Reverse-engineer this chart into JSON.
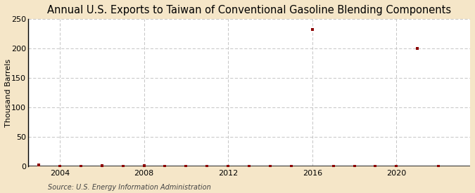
{
  "title": "Annual U.S. Exports to Taiwan of Conventional Gasoline Blending Components",
  "ylabel": "Thousand Barrels",
  "source": "Source: U.S. Energy Information Administration",
  "outer_bg": "#f5e6c8",
  "plot_bg": "#ffffff",
  "years": [
    2003,
    2004,
    2005,
    2006,
    2007,
    2008,
    2009,
    2010,
    2011,
    2012,
    2013,
    2014,
    2015,
    2016,
    2017,
    2018,
    2019,
    2020,
    2021,
    2022
  ],
  "values": [
    3,
    1,
    1,
    2,
    1,
    2,
    1,
    1,
    1,
    1,
    1,
    1,
    1,
    233,
    1,
    1,
    1,
    1,
    200,
    1
  ],
  "xlim": [
    2002.5,
    2023.5
  ],
  "ylim": [
    0,
    250
  ],
  "yticks": [
    0,
    50,
    100,
    150,
    200,
    250
  ],
  "xticks": [
    2004,
    2008,
    2012,
    2016,
    2020
  ],
  "vline_positions": [
    2004,
    2008,
    2012,
    2016,
    2020
  ],
  "marker_color": "#8b0000",
  "marker_size": 3.5,
  "title_fontsize": 10.5,
  "label_fontsize": 8,
  "tick_fontsize": 8,
  "source_fontsize": 7
}
